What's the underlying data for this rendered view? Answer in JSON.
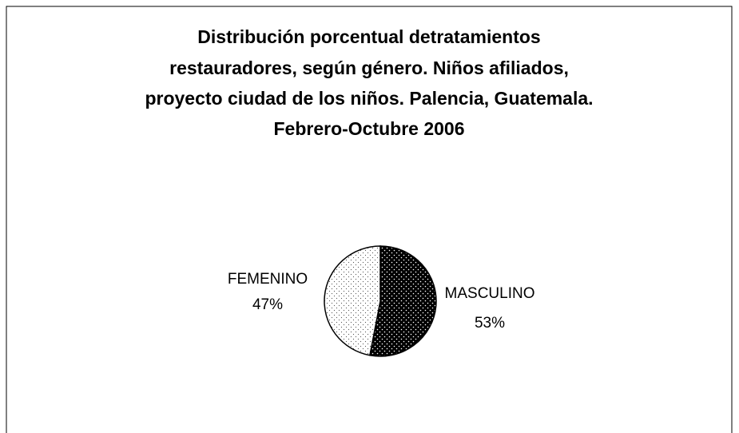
{
  "chart_data": {
    "type": "pie",
    "title": [
      "Distribución porcentual detratamientos",
      "restauradores, según género. Niños afiliados,",
      "proyecto ciudad de los niños.  Palencia, Guatemala.",
      "Febrero-Octubre 2006"
    ],
    "categories": [
      "MASCULINO",
      "FEMENINO"
    ],
    "values": [
      53,
      47
    ],
    "value_labels": [
      "53%",
      "47%"
    ],
    "colors": [
      "#000000",
      "#ffffff"
    ]
  }
}
